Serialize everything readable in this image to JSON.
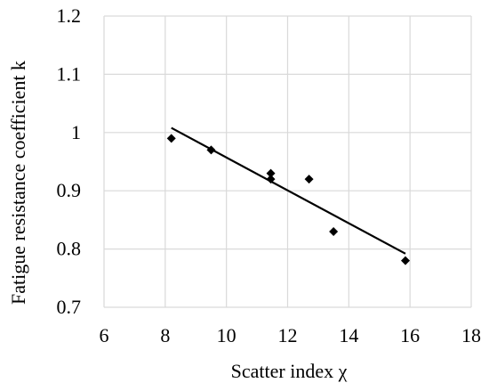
{
  "chart_data": {
    "type": "scatter",
    "title": "",
    "xlabel": "Scatter index χ",
    "ylabel": "Fatigue resistance coefficient k",
    "xlim": [
      6,
      18
    ],
    "ylim": [
      0.7,
      1.2
    ],
    "x_ticks": [
      6,
      8,
      10,
      12,
      14,
      16,
      18
    ],
    "x_tick_labels": [
      "6",
      "8",
      "10",
      "12",
      "14",
      "16",
      "18"
    ],
    "y_ticks": [
      0.7,
      0.8,
      0.9,
      1.0,
      1.1,
      1.2
    ],
    "y_tick_labels": [
      "0.7",
      "0.8",
      "0.9",
      "1",
      "1.1",
      "1.2"
    ],
    "grid": "vertical and horizontal",
    "legend": "none",
    "marker": "diamond",
    "marker_color": "#000000",
    "grid_color": "#d9d9d9",
    "series": [
      {
        "x": [
          8.2,
          9.5,
          11.45,
          11.45,
          12.7,
          13.5,
          15.85
        ],
        "y": [
          0.99,
          0.97,
          0.93,
          0.92,
          0.92,
          0.83,
          0.78
        ]
      }
    ],
    "trendline": {
      "type": "linear",
      "x": [
        8.2,
        15.85
      ],
      "y": [
        1.008,
        0.792
      ],
      "color": "#000000"
    }
  }
}
